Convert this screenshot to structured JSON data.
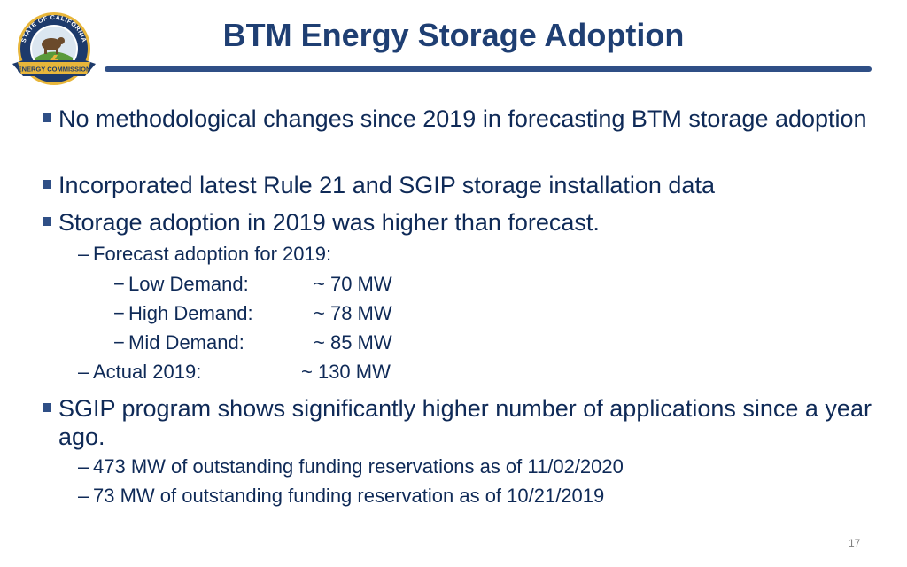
{
  "title": "BTM Energy Storage Adoption",
  "logo": {
    "icon": "california-energy-commission-seal",
    "top_text": "STATE OF CALIFORNIA",
    "bottom_text": "ENERGY COMMISSION",
    "colors": {
      "navy": "#1d3a6b",
      "gold": "#e8b63a",
      "green": "#5a9a3a"
    }
  },
  "bullets": [
    {
      "text": "No methodological changes since 2019 in forecasting BTM storage adoption"
    },
    {
      "text": "Incorporated latest Rule 21 and SGIP storage installation data"
    },
    {
      "text": "Storage adoption in 2019 was higher than forecast.",
      "sub": [
        {
          "text": "Forecast adoption for 2019:",
          "items": [
            {
              "label": "Low Demand:",
              "value": "~ 70 MW"
            },
            {
              "label": "High Demand:",
              "value": "~ 78 MW"
            },
            {
              "label": "Mid Demand:",
              "value": "~ 85 MW"
            }
          ]
        },
        {
          "label": "Actual 2019:",
          "value": "~ 130 MW"
        }
      ]
    },
    {
      "text": "SGIP program shows significantly higher number of applications since a year ago.",
      "sub": [
        {
          "text": "473 MW of outstanding funding reservations as of 11/02/2020"
        },
        {
          "text": "73 MW of outstanding funding reservation as of 10/21/2019"
        }
      ]
    }
  ],
  "dash": "–",
  "subdash": "−",
  "page_number": "17"
}
